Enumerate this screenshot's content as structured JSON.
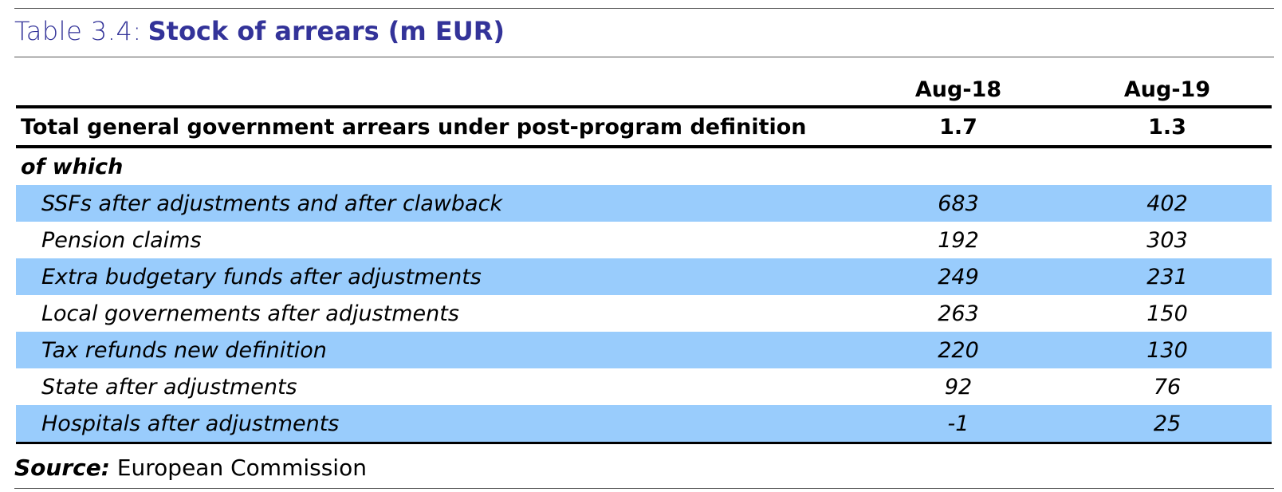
{
  "title": {
    "label": "Table 3.4:",
    "text": "Stock of arrears (m EUR)"
  },
  "table": {
    "columns": [
      "Aug-18",
      "Aug-19"
    ],
    "total": {
      "label": "Total general government arrears under post-program definition",
      "values": [
        1.7,
        1.3
      ]
    },
    "subheader": "of which",
    "rows": [
      {
        "label": "SSFs after adjustments and after clawback",
        "values": [
          683,
          402
        ]
      },
      {
        "label": "Pension claims",
        "values": [
          192,
          303
        ]
      },
      {
        "label": "Extra budgetary funds after adjustments",
        "values": [
          249,
          231
        ]
      },
      {
        "label": "Local governements after adjustments",
        "values": [
          263,
          150
        ]
      },
      {
        "label": "Tax refunds new definition",
        "values": [
          220,
          130
        ]
      },
      {
        "label": "State after adjustments",
        "values": [
          92,
          76
        ]
      },
      {
        "label": "Hospitals after adjustments",
        "values": [
          -1,
          25
        ]
      }
    ]
  },
  "source": {
    "label": "Source:",
    "text": "European Commission"
  }
}
